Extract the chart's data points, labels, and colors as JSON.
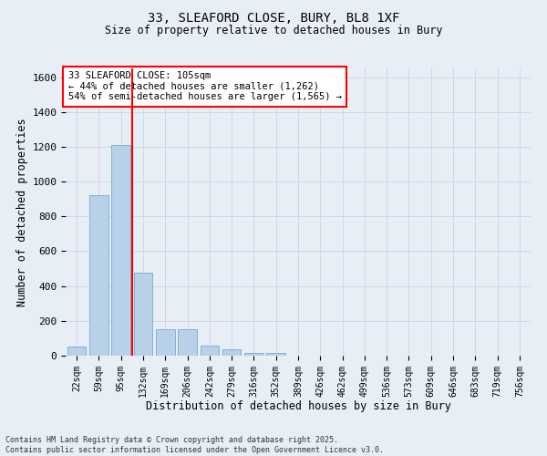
{
  "title_line1": "33, SLEAFORD CLOSE, BURY, BL8 1XF",
  "title_line2": "Size of property relative to detached houses in Bury",
  "xlabel": "Distribution of detached houses by size in Bury",
  "ylabel": "Number of detached properties",
  "categories": [
    "22sqm",
    "59sqm",
    "95sqm",
    "132sqm",
    "169sqm",
    "206sqm",
    "242sqm",
    "279sqm",
    "316sqm",
    "352sqm",
    "389sqm",
    "426sqm",
    "462sqm",
    "499sqm",
    "536sqm",
    "573sqm",
    "609sqm",
    "646sqm",
    "683sqm",
    "719sqm",
    "756sqm"
  ],
  "values": [
    55,
    920,
    1210,
    475,
    150,
    150,
    60,
    35,
    15,
    15,
    0,
    0,
    0,
    0,
    0,
    0,
    0,
    0,
    0,
    0,
    0
  ],
  "bar_color": "#b8d0e8",
  "bar_edge_color": "#7aaace",
  "grid_color": "#cdd8e8",
  "background_color": "#e8eef5",
  "annotation_box_text": "33 SLEAFORD CLOSE: 105sqm\n← 44% of detached houses are smaller (1,262)\n54% of semi-detached houses are larger (1,565) →",
  "annotation_box_color": "white",
  "annotation_box_edge_color": "red",
  "vline_color": "red",
  "vline_x_index": 2.5,
  "ylim": [
    0,
    1650
  ],
  "yticks": [
    0,
    200,
    400,
    600,
    800,
    1000,
    1200,
    1400,
    1600
  ],
  "footer_line1": "Contains HM Land Registry data © Crown copyright and database right 2025.",
  "footer_line2": "Contains public sector information licensed under the Open Government Licence v3.0."
}
